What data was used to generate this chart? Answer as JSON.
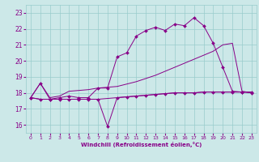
{
  "xlabel": "Windchill (Refroidissement éolien,°C)",
  "background_color": "#cce8e8",
  "line_color": "#880088",
  "grid_color": "#99cccc",
  "xlim": [
    -0.5,
    23.5
  ],
  "ylim": [
    15.5,
    23.5
  ],
  "yticks": [
    16,
    17,
    18,
    19,
    20,
    21,
    22,
    23
  ],
  "xticks": [
    0,
    1,
    2,
    3,
    4,
    5,
    6,
    7,
    8,
    9,
    10,
    11,
    12,
    13,
    14,
    15,
    16,
    17,
    18,
    19,
    20,
    21,
    22,
    23
  ],
  "s1_x": [
    0,
    1,
    2,
    3,
    4,
    5,
    6,
    7,
    8,
    9,
    10,
    11,
    12,
    13,
    14,
    15,
    16,
    17,
    18,
    19,
    20,
    21,
    22,
    23
  ],
  "s1_y": [
    17.7,
    18.6,
    17.6,
    17.7,
    17.8,
    17.7,
    17.7,
    18.3,
    18.3,
    20.25,
    20.5,
    21.55,
    21.9,
    22.1,
    21.9,
    22.3,
    22.2,
    22.7,
    22.2,
    21.1,
    19.6,
    18.1,
    18.05,
    18.0
  ],
  "s2_x": [
    0,
    1,
    2,
    3,
    4,
    5,
    6,
    7,
    8,
    9,
    10,
    11,
    12,
    13,
    14,
    15,
    16,
    17,
    18,
    19,
    20,
    21,
    22,
    23
  ],
  "s2_y": [
    17.7,
    17.6,
    17.6,
    17.6,
    17.6,
    17.6,
    17.6,
    17.6,
    17.65,
    17.7,
    17.75,
    17.8,
    17.85,
    17.9,
    17.95,
    18.0,
    18.0,
    18.0,
    18.05,
    18.05,
    18.05,
    18.05,
    18.05,
    18.05
  ],
  "s3_x": [
    0,
    1,
    2,
    3,
    4,
    5,
    6,
    7,
    8,
    9,
    10,
    11,
    12,
    13,
    14,
    15,
    16,
    17,
    18,
    19,
    20,
    21,
    22,
    23
  ],
  "s3_y": [
    17.7,
    17.6,
    17.6,
    17.6,
    17.6,
    17.6,
    17.6,
    17.6,
    15.9,
    17.7,
    17.75,
    17.8,
    17.85,
    17.9,
    17.95,
    18.0,
    18.0,
    18.0,
    18.05,
    18.05,
    18.05,
    18.05,
    18.05,
    18.05
  ],
  "s4_x": [
    0,
    1,
    2,
    3,
    4,
    5,
    6,
    7,
    8,
    9,
    10,
    11,
    12,
    13,
    14,
    15,
    16,
    17,
    18,
    19,
    20,
    21,
    22,
    23
  ],
  "s4_y": [
    17.7,
    18.6,
    17.7,
    17.8,
    18.1,
    18.15,
    18.2,
    18.3,
    18.35,
    18.4,
    18.55,
    18.7,
    18.9,
    19.1,
    19.35,
    19.6,
    19.85,
    20.1,
    20.35,
    20.6,
    21.0,
    21.1,
    18.1,
    18.0
  ]
}
